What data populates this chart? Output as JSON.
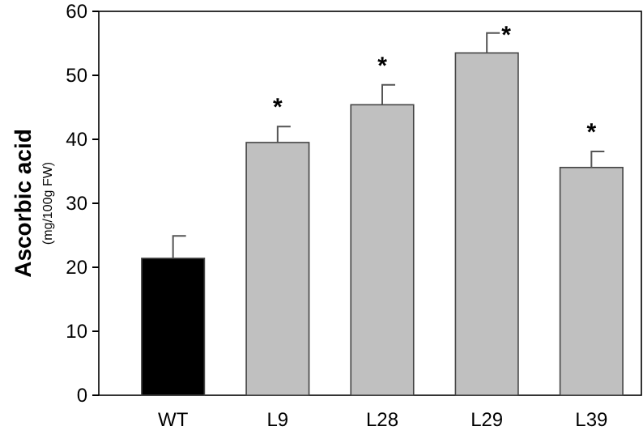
{
  "chart_data": {
    "type": "bar",
    "ylabel": "Ascorbic acid\n(mg/100g FW)",
    "categories": [
      "WT",
      "L9",
      "L28",
      "L29",
      "L39"
    ],
    "values": [
      21.4,
      39.5,
      45.4,
      53.5,
      35.6
    ],
    "colors": [
      "#000000",
      "#c0c0c0",
      "#c0c0c0",
      "#c0c0c0",
      "#c0c0c0"
    ],
    "errors": [
      [
        21.4,
        24.9
      ],
      [
        39.5,
        42.0
      ],
      [
        45.4,
        48.5
      ],
      [
        53.5,
        56.6
      ],
      [
        35.6,
        38.1
      ]
    ],
    "ylim": [
      0,
      60
    ],
    "yticks": [
      0,
      10,
      20,
      30,
      40,
      50,
      60
    ],
    "grid": false,
    "annotations": [
      {
        "text": "*",
        "x": "L9",
        "y": 42.0
      },
      {
        "text": "*",
        "x": "L28",
        "y": 48.5
      },
      {
        "text": "*",
        "x": "L29",
        "y": 56.6
      },
      {
        "text": "*",
        "x": "L39",
        "y": 38.1
      }
    ]
  }
}
